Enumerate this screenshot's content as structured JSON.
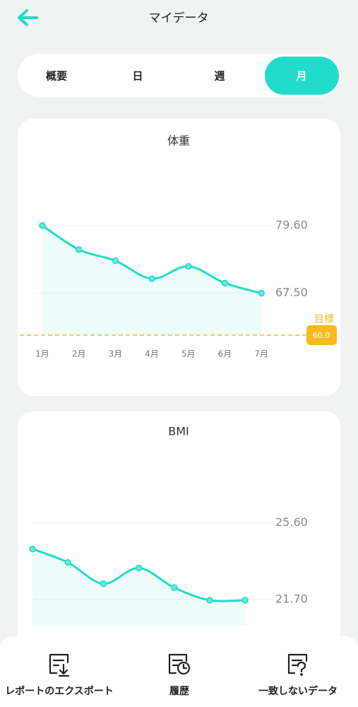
{
  "header": {
    "title": "マイデータ"
  },
  "tabs": {
    "items": [
      "概要",
      "日",
      "週",
      "月"
    ],
    "active": 3
  },
  "chart_data": [
    {
      "type": "line",
      "title": "体重",
      "categories": [
        "1月",
        "2月",
        "3月",
        "4月",
        "5月",
        "6月",
        "7月"
      ],
      "values": [
        79.6,
        75.3,
        73.3,
        70.1,
        72.3,
        69.3,
        67.5
      ],
      "color": "#22dccb",
      "ylim": [
        60,
        82
      ],
      "yticks": [
        {
          "value": 79.6,
          "label": "79.60"
        },
        {
          "value": 67.5,
          "label": "67.50"
        }
      ],
      "grid": true,
      "target": {
        "name": "目標",
        "value": 60,
        "value_label": "60.0",
        "color": "#f6bb1f"
      }
    },
    {
      "type": "line",
      "title": "BMI",
      "categories": [
        null,
        null,
        null,
        null,
        null,
        null,
        null
      ],
      "values": [
        24.27,
        23.58,
        22.5,
        23.3,
        22.3,
        21.66,
        21.66
      ],
      "color": "#22dccb",
      "ylim": [
        20.4,
        26.3
      ],
      "yticks": [
        {
          "value": 25.6,
          "label": "25.60"
        },
        {
          "value": 21.7,
          "label": "21.70"
        }
      ],
      "grid": true
    }
  ],
  "bottom_nav": {
    "items": [
      "レポートのエクスポート",
      "履歴",
      "一致しないデータ"
    ]
  }
}
